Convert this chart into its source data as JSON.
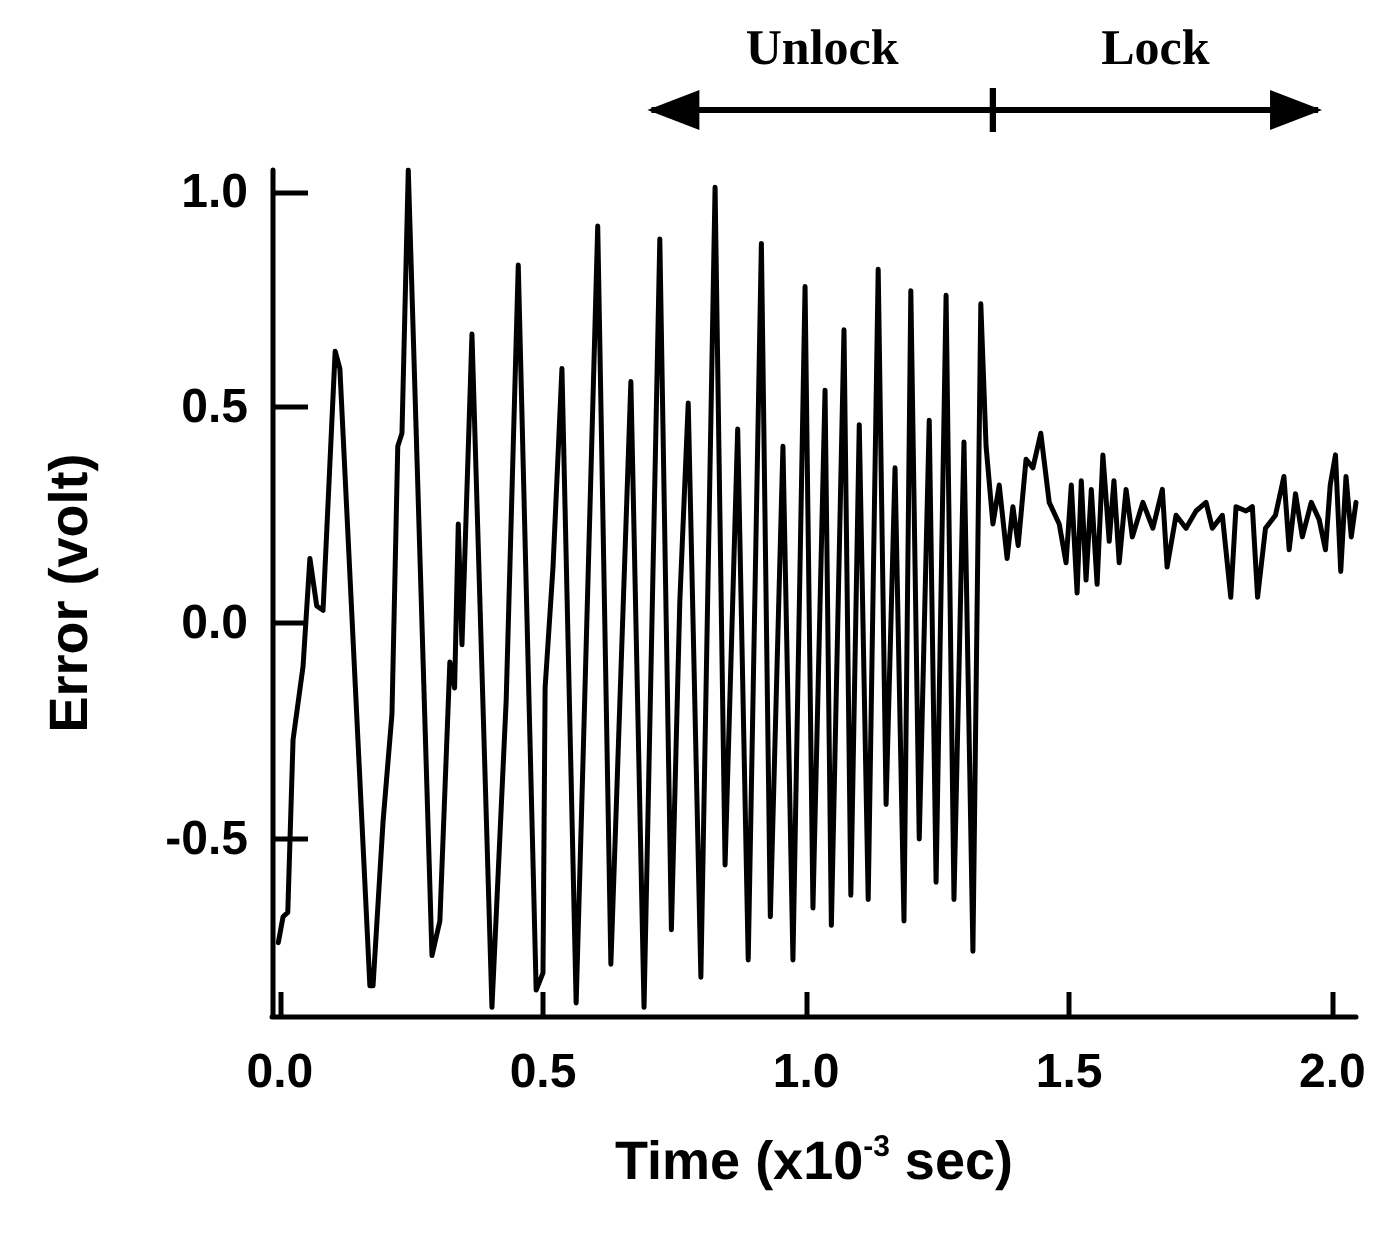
{
  "chart_data": {
    "type": "line",
    "xlabel": "Time (x10$^{-3}$ sec)",
    "ylabel": "Error (volt)",
    "xlim": [
      -0.015,
      2.045
    ],
    "ylim": [
      -0.91,
      1.05
    ],
    "xticks": [
      {
        "value": 0,
        "label": "0.0"
      },
      {
        "value": 0.5,
        "label": "0.5"
      },
      {
        "value": 1,
        "label": "1.0"
      },
      {
        "value": 1.5,
        "label": "1.5"
      },
      {
        "value": 2,
        "label": "2.0"
      }
    ],
    "yticks": [
      {
        "value": -0.5,
        "label": "-0.5"
      },
      {
        "value": 0,
        "label": "0.0"
      },
      {
        "value": 0.5,
        "label": "0.5"
      },
      {
        "value": 1,
        "label": "1.0"
      }
    ],
    "grid": false,
    "marker": "none",
    "line_style": "solid",
    "annotations": [
      "Unlock",
      "Lock"
    ],
    "series": [
      {
        "color": "#000000",
        "x": [
          -0.003,
          0.006,
          0.015,
          0.025,
          0.044,
          0.057,
          0.07,
          0.082,
          0.105,
          0.114,
          0.171,
          0.177,
          0.196,
          0.213,
          0.224,
          0.232,
          0.244,
          0.289,
          0.304,
          0.323,
          0.332,
          0.339,
          0.346,
          0.365,
          0.403,
          0.43,
          0.453,
          0.487,
          0.5,
          0.504,
          0.519,
          0.536,
          0.563,
          0.576,
          0.604,
          0.629,
          0.667,
          0.692,
          0.722,
          0.744,
          0.76,
          0.776,
          0.8,
          0.827,
          0.846,
          0.87,
          0.89,
          0.915,
          0.932,
          0.956,
          0.975,
          0.998,
          1.013,
          1.036,
          1.048,
          1.072,
          1.085,
          1.101,
          1.118,
          1.137,
          1.152,
          1.169,
          1.186,
          1.199,
          1.215,
          1.234,
          1.247,
          1.266,
          1.281,
          1.3,
          1.317,
          1.332,
          1.342,
          1.355,
          1.367,
          1.382,
          1.393,
          1.403,
          1.418,
          1.431,
          1.446,
          1.462,
          1.481,
          1.494,
          1.504,
          1.515,
          1.523,
          1.532,
          1.542,
          1.553,
          1.564,
          1.576,
          1.585,
          1.595,
          1.608,
          1.62,
          1.64,
          1.659,
          1.677,
          1.686,
          1.703,
          1.722,
          1.741,
          1.76,
          1.772,
          1.791,
          1.807,
          1.817,
          1.836,
          1.848,
          1.858,
          1.873,
          1.892,
          1.908,
          1.918,
          1.93,
          1.943,
          1.96,
          1.975,
          1.987,
          1.996,
          2.006,
          2.016,
          2.026,
          2.036,
          2.045
        ],
        "values": [
          -0.74,
          -0.68,
          -0.67,
          -0.27,
          -0.1,
          0.15,
          0.04,
          0.03,
          0.63,
          0.59,
          -0.84,
          -0.84,
          -0.46,
          -0.21,
          0.41,
          0.44,
          1.05,
          -0.77,
          -0.69,
          -0.09,
          -0.15,
          0.23,
          -0.05,
          0.67,
          -0.89,
          -0.18,
          0.83,
          -0.85,
          -0.81,
          -0.15,
          0.13,
          0.59,
          -0.88,
          -0.32,
          0.92,
          -0.79,
          0.56,
          -0.89,
          0.89,
          -0.71,
          0.05,
          0.51,
          -0.82,
          1.01,
          -0.56,
          0.45,
          -0.78,
          0.88,
          -0.68,
          0.41,
          -0.78,
          0.78,
          -0.66,
          0.54,
          -0.7,
          0.68,
          -0.63,
          0.46,
          -0.64,
          0.82,
          -0.42,
          0.36,
          -0.69,
          0.77,
          -0.5,
          0.47,
          -0.6,
          0.76,
          -0.64,
          0.42,
          -0.76,
          0.74,
          0.41,
          0.23,
          0.32,
          0.15,
          0.27,
          0.18,
          0.38,
          0.36,
          0.44,
          0.28,
          0.23,
          0.14,
          0.32,
          0.07,
          0.33,
          0.1,
          0.31,
          0.09,
          0.39,
          0.19,
          0.33,
          0.14,
          0.31,
          0.2,
          0.28,
          0.22,
          0.31,
          0.13,
          0.25,
          0.22,
          0.26,
          0.28,
          0.22,
          0.25,
          0.06,
          0.27,
          0.26,
          0.27,
          0.06,
          0.22,
          0.25,
          0.34,
          0.17,
          0.3,
          0.2,
          0.28,
          0.24,
          0.17,
          0.32,
          0.39,
          0.12,
          0.34,
          0.2,
          0.28
        ]
      }
    ]
  }
}
